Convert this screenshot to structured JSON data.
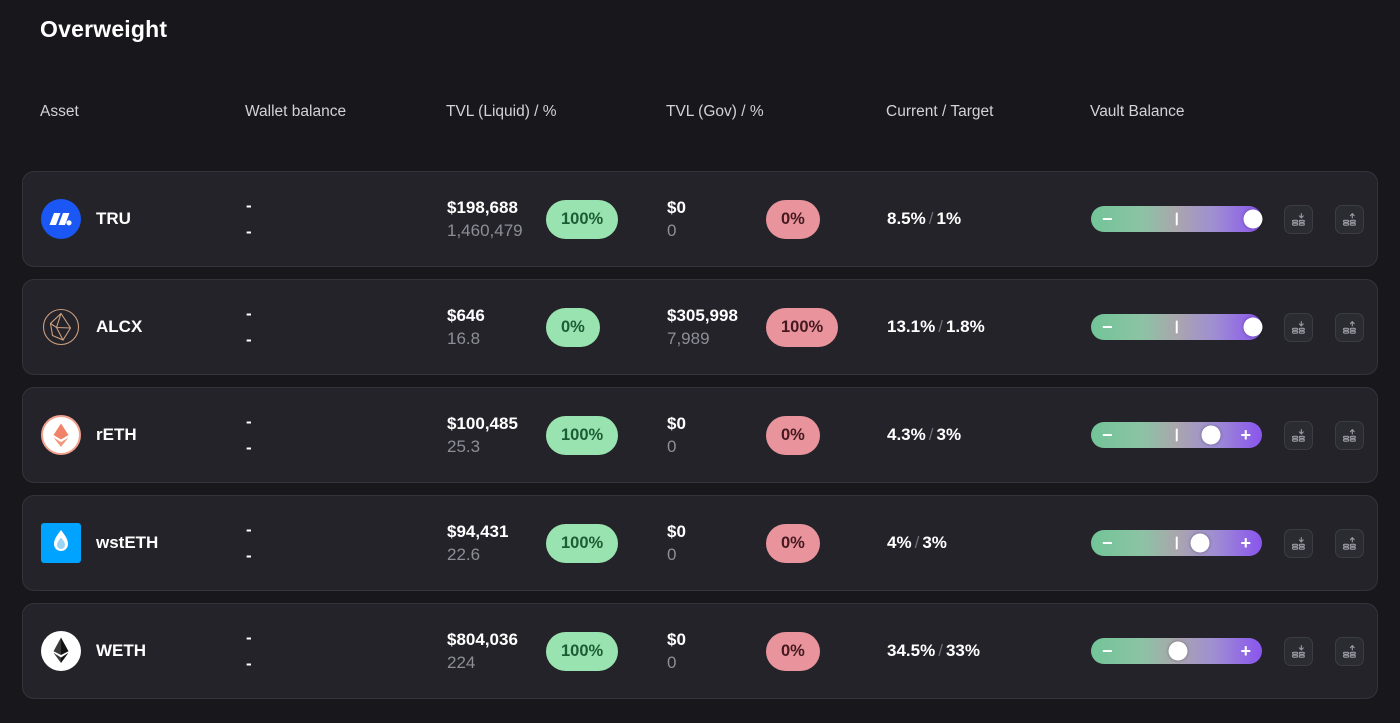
{
  "page": {
    "title": "Overweight"
  },
  "table": {
    "columns": [
      {
        "label": "Asset"
      },
      {
        "label": "Wallet balance"
      },
      {
        "label": "TVL (Liquid) / %"
      },
      {
        "label": "TVL (Gov) / %"
      },
      {
        "label": "Current / Target"
      },
      {
        "label": "Vault Balance"
      }
    ],
    "separator": "/",
    "rows": [
      {
        "asset": "TRU",
        "icon": "truefi-token-icon",
        "wallet_primary": "-",
        "wallet_secondary": "-",
        "tvl_liquid": {
          "usd": "$198,688",
          "amount": "1,460,479",
          "pct": "100%",
          "pct_color": "green"
        },
        "tvl_gov": {
          "usd": "$0",
          "amount": "0",
          "pct": "0%",
          "pct_color": "red"
        },
        "current": "8.5%",
        "target": "1%",
        "slider": {
          "value_pct": 95,
          "show_minus": true,
          "show_plus": false
        }
      },
      {
        "asset": "ALCX",
        "icon": "alchemix-token-icon",
        "wallet_primary": "-",
        "wallet_secondary": "-",
        "tvl_liquid": {
          "usd": "$646",
          "amount": "16.8",
          "pct": "0%",
          "pct_color": "green"
        },
        "tvl_gov": {
          "usd": "$305,998",
          "amount": "7,989",
          "pct": "100%",
          "pct_color": "red"
        },
        "current": "13.1%",
        "target": "1.8%",
        "slider": {
          "value_pct": 95,
          "show_minus": true,
          "show_plus": false
        }
      },
      {
        "asset": "rETH",
        "icon": "reth-token-icon",
        "wallet_primary": "-",
        "wallet_secondary": "-",
        "tvl_liquid": {
          "usd": "$100,485",
          "amount": "25.3",
          "pct": "100%",
          "pct_color": "green"
        },
        "tvl_gov": {
          "usd": "$0",
          "amount": "0",
          "pct": "0%",
          "pct_color": "red"
        },
        "current": "4.3%",
        "target": "3%",
        "slider": {
          "value_pct": 70,
          "show_minus": true,
          "show_plus": true
        }
      },
      {
        "asset": "wstETH",
        "icon": "wsteth-token-icon",
        "wallet_primary": "-",
        "wallet_secondary": "-",
        "tvl_liquid": {
          "usd": "$94,431",
          "amount": "22.6",
          "pct": "100%",
          "pct_color": "green"
        },
        "tvl_gov": {
          "usd": "$0",
          "amount": "0",
          "pct": "0%",
          "pct_color": "red"
        },
        "current": "4%",
        "target": "3%",
        "slider": {
          "value_pct": 64,
          "show_minus": true,
          "show_plus": true
        }
      },
      {
        "asset": "WETH",
        "icon": "weth-token-icon",
        "wallet_primary": "-",
        "wallet_secondary": "-",
        "tvl_liquid": {
          "usd": "$804,036",
          "amount": "224",
          "pct": "100%",
          "pct_color": "green"
        },
        "tvl_gov": {
          "usd": "$0",
          "amount": "0",
          "pct": "0%",
          "pct_color": "red"
        },
        "current": "34.5%",
        "target": "33%",
        "slider": {
          "value_pct": 51,
          "show_minus": true,
          "show_plus": true
        }
      }
    ]
  },
  "colors": {
    "page_bg": "#17171c",
    "card_bg": "#232329",
    "card_border": "#33333b",
    "badge_green_bg": "#98e3af",
    "badge_green_text": "#1d5c35",
    "badge_red_bg": "#e9949c",
    "badge_red_text": "#44191f",
    "slider_green": "#72c598",
    "slider_purple": "#8a55ee",
    "secondary_text": "#8e8e97",
    "header_text": "#d2d2d9"
  }
}
